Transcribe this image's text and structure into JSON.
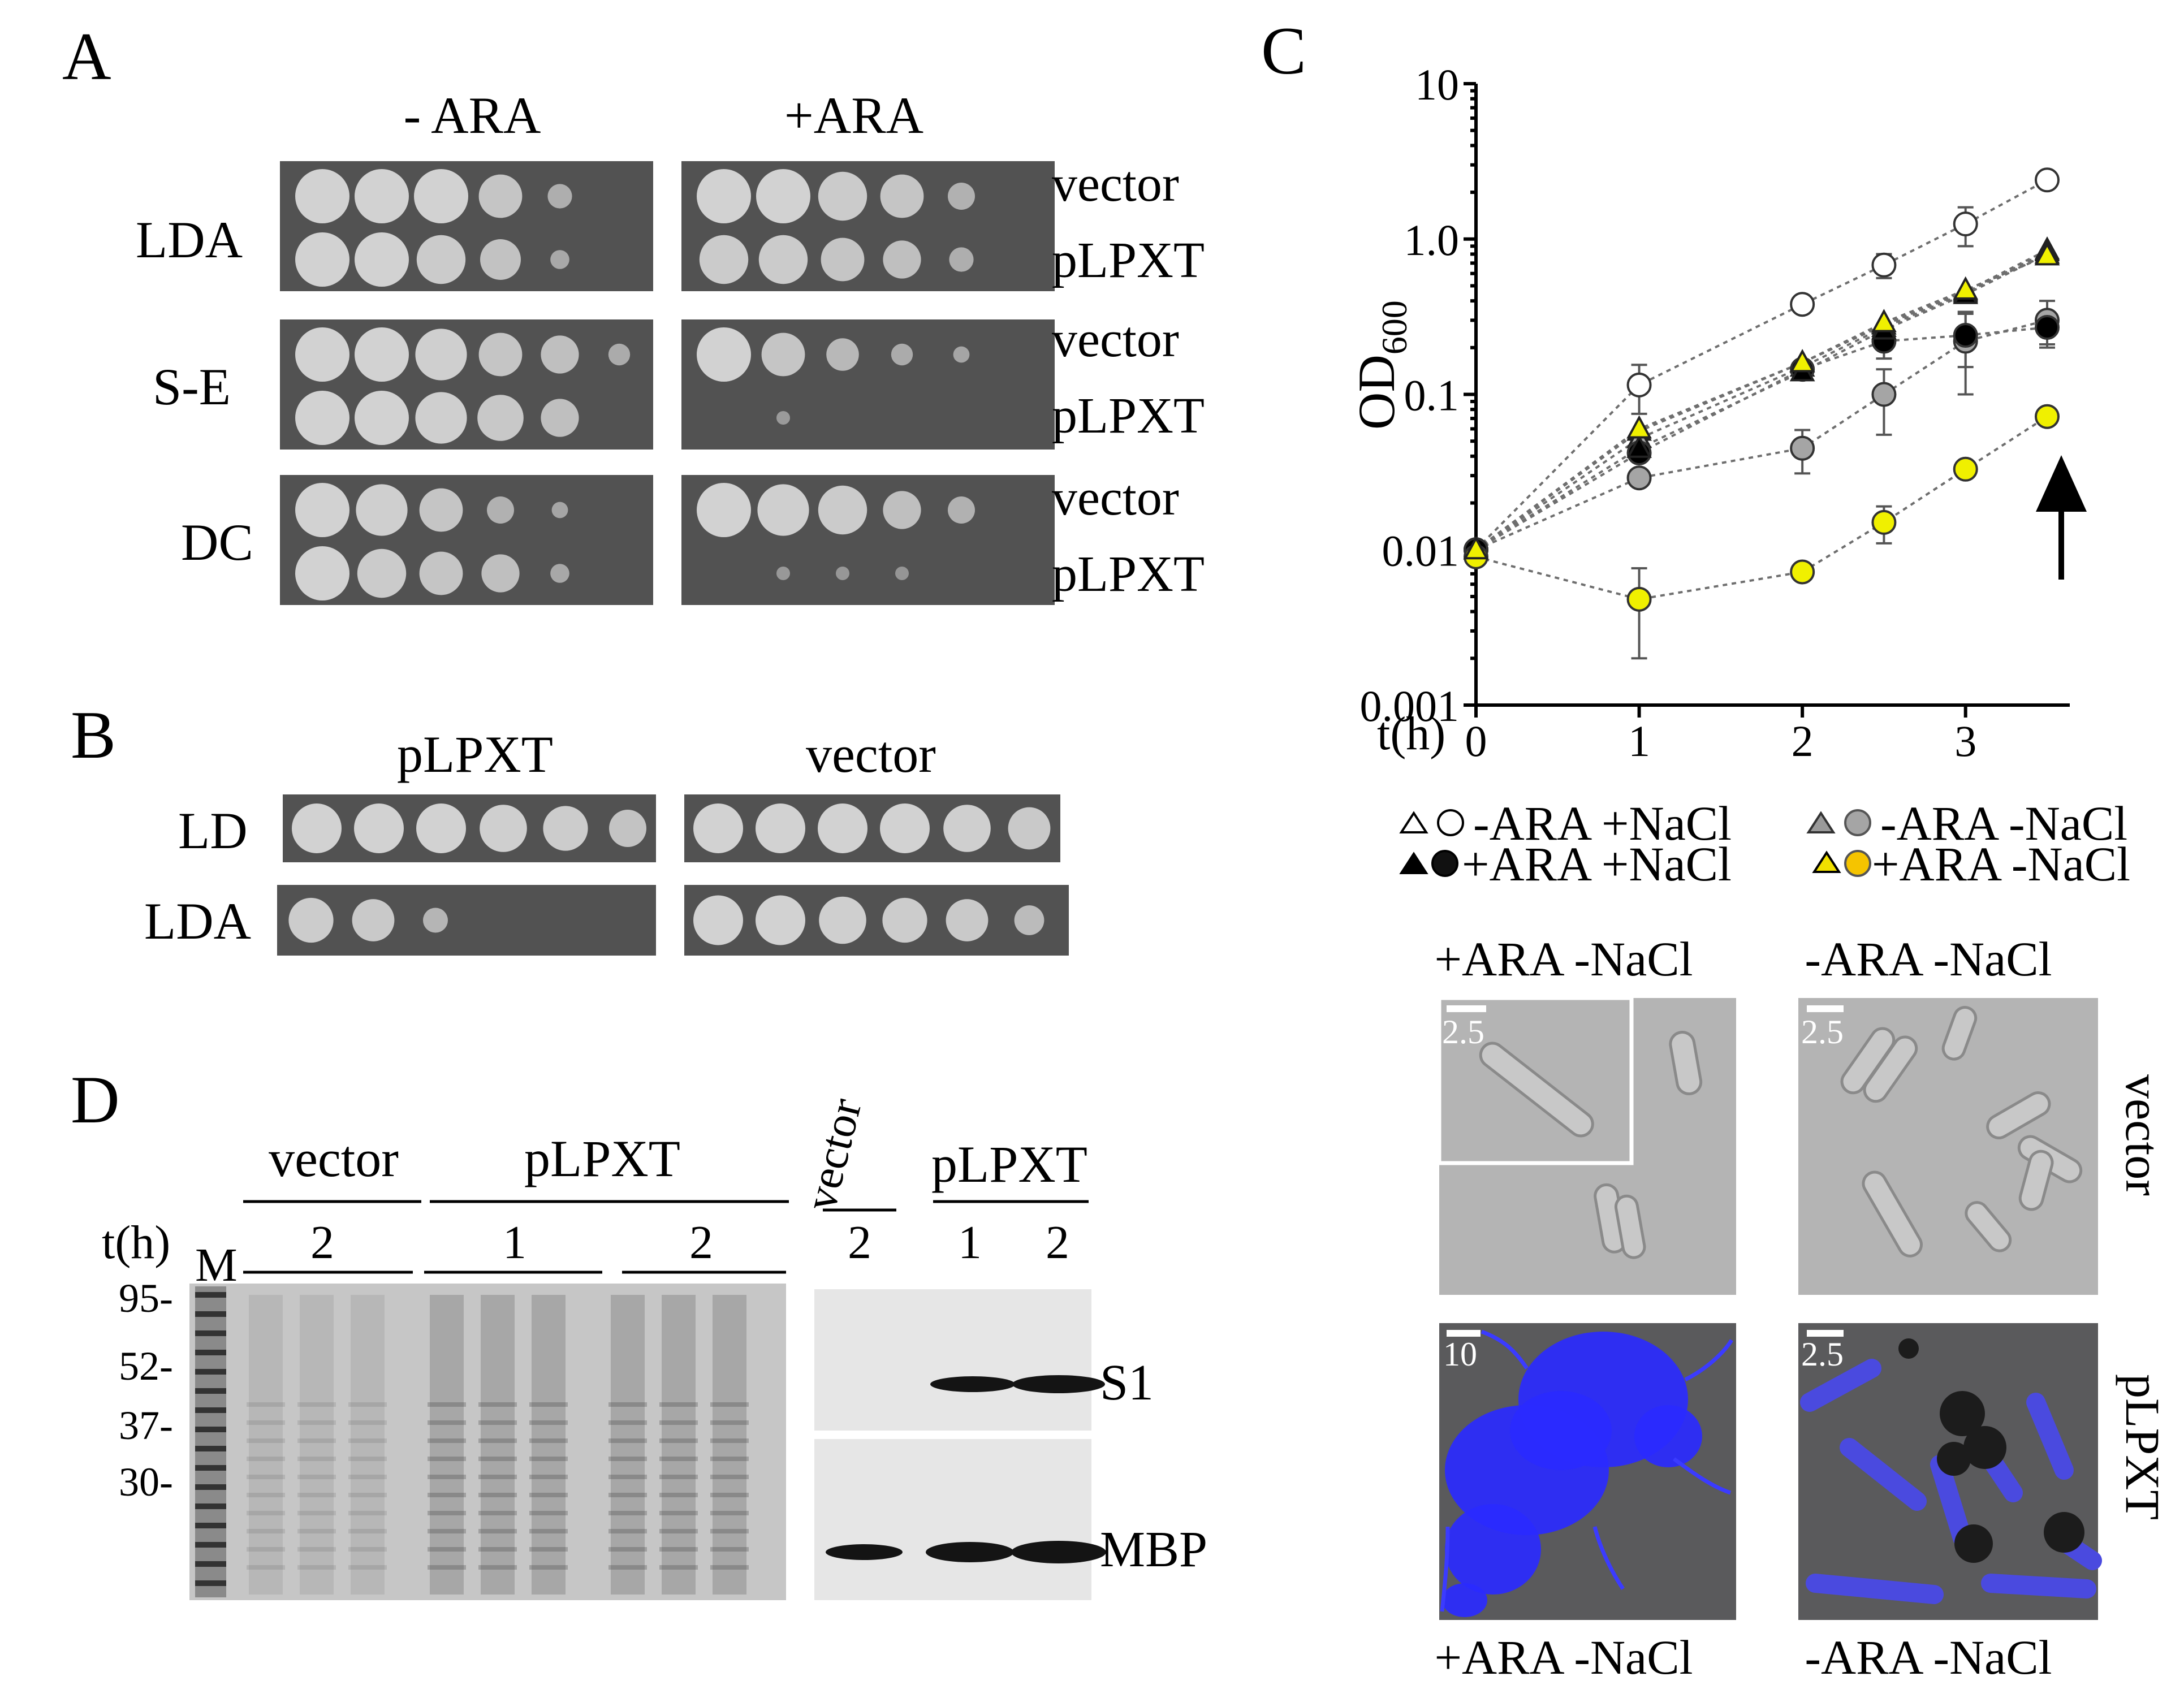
{
  "panel_labels": {
    "a": "A",
    "b": "B",
    "c": "C",
    "d": "D"
  },
  "panel_a": {
    "col_headers": [
      "- ARA",
      "+ARA"
    ],
    "rows": [
      {
        "label": "LDA",
        "strain_vector": "vector",
        "strain_plxt": "pLPXT"
      },
      {
        "label": "S-E",
        "strain_vector": "vector",
        "strain_plxt": "pLPXT"
      },
      {
        "label": "DC",
        "strain_vector": "vector",
        "strain_plxt": "pLPXT"
      }
    ]
  },
  "panel_b": {
    "col_headers": [
      "pLPXT",
      "vector"
    ],
    "rows": [
      "LD",
      "LDA"
    ]
  },
  "panel_d": {
    "gel": {
      "marker_lane": "M",
      "time_label": "t(h)",
      "group_vector": "vector",
      "group_plxt": "pLPXT",
      "time_values": [
        "2",
        "1",
        "2"
      ],
      "mw_markers": [
        "95-",
        "52-",
        "37-",
        "30-"
      ]
    },
    "blot": {
      "group_vector": "vector",
      "group_plxt": "pLPXT",
      "time_values": [
        "2",
        "1",
        "2"
      ],
      "bands": [
        "S1",
        "MBP"
      ]
    }
  },
  "panel_c_micro": {
    "top_headers": [
      "+ARA -NaCl",
      "-ARA -NaCl"
    ],
    "bottom_labels": [
      "+ARA -NaCl",
      "-ARA -NaCl"
    ],
    "row_labels": [
      "vector",
      "pLPXT"
    ],
    "scale_bars": [
      "2.5",
      "2.5",
      "10",
      "2.5"
    ],
    "fluorescence_color": "#2a2aff"
  },
  "chart_data": {
    "type": "line",
    "xlabel": "t(h)",
    "ylabel_main": "OD",
    "ylabel_sub": "600",
    "yscale": "log",
    "ylim": [
      0.001,
      10
    ],
    "xlim": [
      0,
      3.5
    ],
    "x_ticks": [
      "0",
      "1",
      "2",
      "3"
    ],
    "y_ticks": [
      "0.001",
      "0.01",
      "0.1",
      "1.0",
      "10"
    ],
    "grid": false,
    "annotation": "arrow at t=3.5 h",
    "legend": [
      "-ARA +NaCl",
      "-ARA -NaCl",
      "+ARA +NaCl",
      "+ARA -NaCl"
    ],
    "series": [
      {
        "name": "-ARA +NaCl",
        "marker": "circle",
        "fill": "#ffffff",
        "x": [
          0,
          1,
          2,
          2.5,
          3,
          3.5
        ],
        "y": [
          0.01,
          0.115,
          0.38,
          0.68,
          1.25,
          2.4
        ],
        "err": [
          0,
          0.04,
          0.03,
          0.12,
          0.35,
          0
        ]
      },
      {
        "name": "-ARA +NaCl",
        "marker": "triangle",
        "fill": "#ffffff",
        "x": [
          0,
          1,
          2,
          2.5,
          3,
          3.5
        ],
        "y": [
          0.01,
          0.058,
          0.16,
          0.28,
          0.46,
          0.85
        ],
        "err": [
          0,
          0,
          0,
          0,
          0,
          0
        ]
      },
      {
        "name": "-ARA -NaCl",
        "marker": "circle",
        "fill": "#a5a5a5",
        "x": [
          0,
          1,
          2,
          2.5,
          3,
          3.5
        ],
        "y": [
          0.01,
          0.029,
          0.045,
          0.1,
          0.22,
          0.3
        ],
        "err": [
          0,
          0,
          0.014,
          0.045,
          0.12,
          0.1
        ]
      },
      {
        "name": "-ARA -NaCl",
        "marker": "triangle",
        "fill": "#a5a5a5",
        "x": [
          0,
          1,
          2,
          2.5,
          3,
          3.5
        ],
        "y": [
          0.01,
          0.052,
          0.15,
          0.27,
          0.45,
          0.83
        ],
        "err": [
          0,
          0,
          0,
          0,
          0,
          0
        ]
      },
      {
        "name": "+ARA +NaCl",
        "marker": "circle",
        "fill": "#000000",
        "x": [
          0,
          1,
          2,
          2.5,
          3,
          3.5
        ],
        "y": [
          0.01,
          0.042,
          0.145,
          0.22,
          0.24,
          0.27
        ],
        "err": [
          0,
          0,
          0,
          0.05,
          0.09,
          0.06
        ]
      },
      {
        "name": "+ARA +NaCl",
        "marker": "triangle",
        "fill": "#000000",
        "x": [
          0,
          1,
          2,
          2.5,
          3,
          3.5
        ],
        "y": [
          0.01,
          0.045,
          0.14,
          0.26,
          0.44,
          0.8
        ],
        "err": [
          0,
          0,
          0,
          0,
          0,
          0
        ]
      },
      {
        "name": "+ARA -NaCl",
        "marker": "circle",
        "fill": "#f0f000",
        "x": [
          0,
          1,
          2,
          2.5,
          3,
          3.5
        ],
        "y": [
          0.009,
          0.0048,
          0.0072,
          0.015,
          0.033,
          0.072
        ],
        "err": [
          0,
          0.0028,
          0,
          0.004,
          0,
          0
        ]
      },
      {
        "name": "+ARA -NaCl",
        "marker": "triangle",
        "fill": "#f0f000",
        "x": [
          0,
          1,
          2,
          2.5,
          3,
          3.5
        ],
        "y": [
          0.01,
          0.06,
          0.16,
          0.29,
          0.47,
          0.78
        ],
        "err": [
          0,
          0,
          0,
          0,
          0,
          0
        ]
      }
    ]
  }
}
